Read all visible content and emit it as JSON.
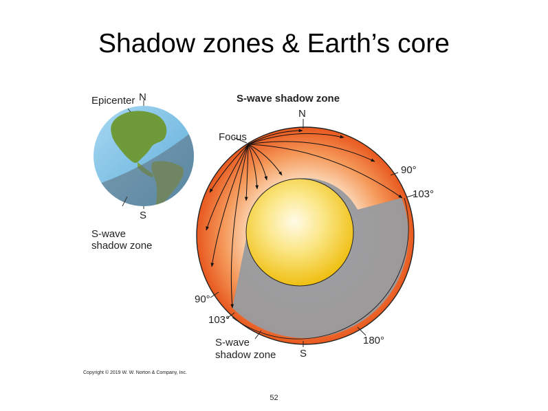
{
  "slide": {
    "title": "Shadow zones & Earth’s core",
    "page_number": "52"
  },
  "small_globe": {
    "epicenter_label": "Epicenter",
    "north_label": "N",
    "south_label": "S",
    "shadow_label_line1": "S-wave",
    "shadow_label_line2": "shadow zone"
  },
  "main_diagram": {
    "title": "S-wave shadow zone",
    "north_label": "N",
    "focus_label": "Focus",
    "right_90": "90°",
    "right_103": "103°",
    "left_90": "90°",
    "left_103": "103°",
    "bottom_180": "180°",
    "south_label": "S",
    "shadow_label_line1": "S-wave",
    "shadow_label_line2": "shadow zone"
  },
  "copyright": "Copyright © 2019 W. W. Norton & Company, Inc.",
  "colors": {
    "mantle_orange": "#ee6a2c",
    "shadow_gray": "#9a9b9e",
    "core_yellow": "#f4cf2a",
    "ocean_blue": "#7fc3e6"
  }
}
